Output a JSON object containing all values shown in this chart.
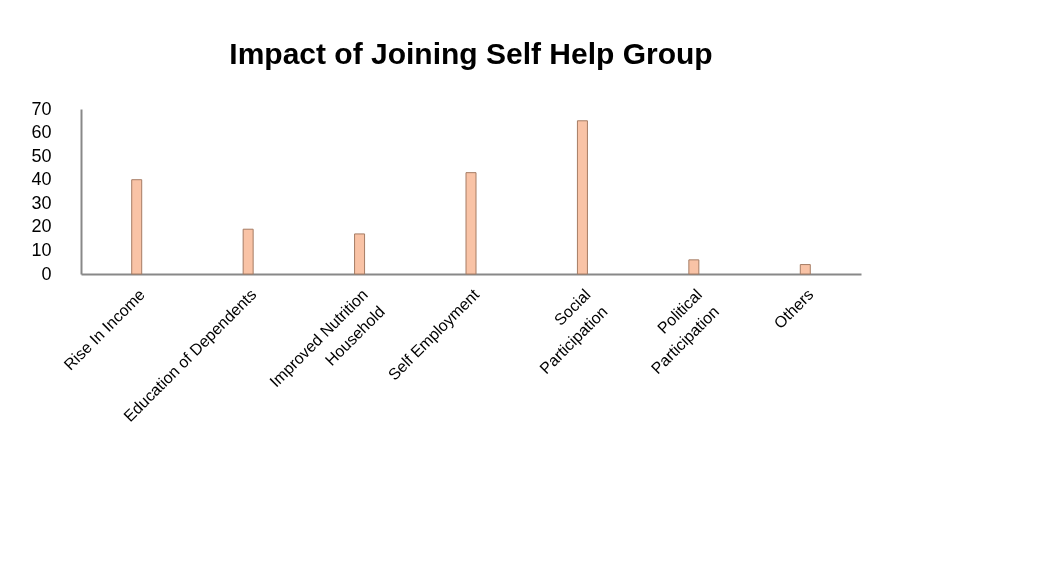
{
  "chart_data": {
    "type": "bar",
    "title": "Impact of Joining Self Help Group",
    "categories": [
      "Rise In Income",
      "Education of Dependents",
      "Improved  Nutrition\nHousehold",
      "Self Employment",
      "Social\nParticipation",
      "Political\nParticipation",
      "Others"
    ],
    "values": [
      40,
      19,
      17,
      43,
      65,
      6,
      4
    ],
    "color": "#f9c3a6",
    "ylim": [
      0,
      70
    ],
    "yticks": [
      0,
      10,
      20,
      30,
      40,
      50,
      60,
      70
    ],
    "grid": false
  }
}
